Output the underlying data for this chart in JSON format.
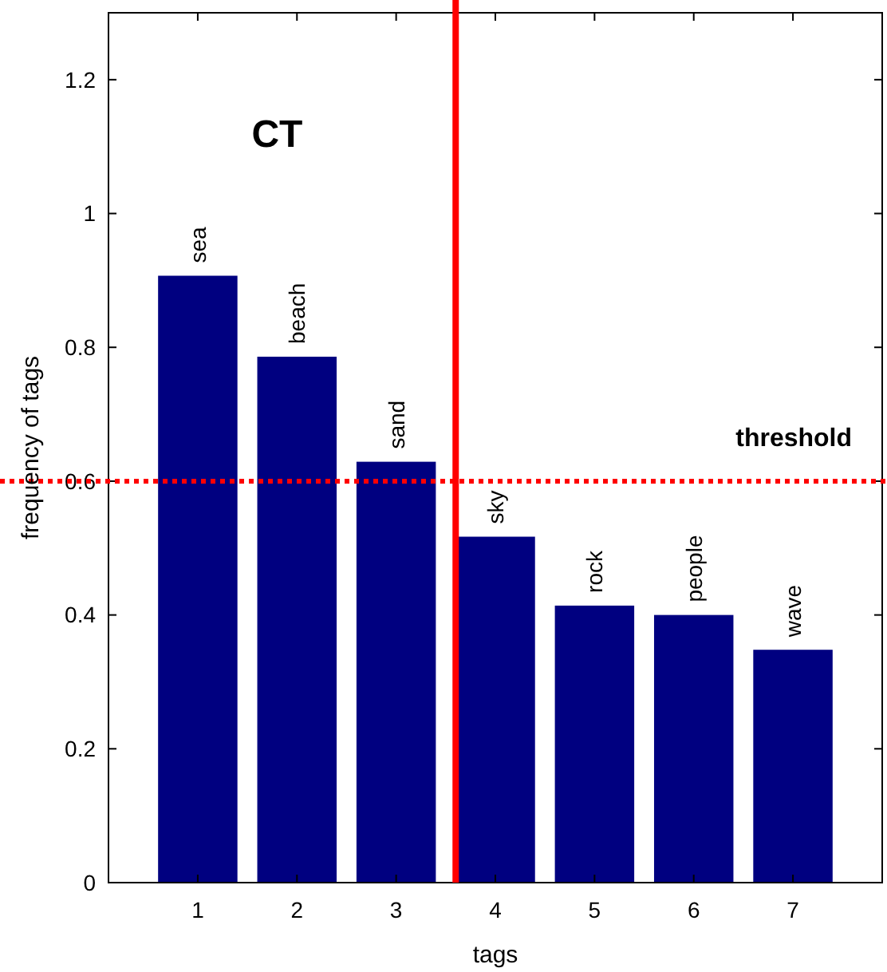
{
  "chart_data": {
    "type": "bar",
    "x": [
      1,
      2,
      3,
      4,
      5,
      6,
      7
    ],
    "values": [
      0.907,
      0.786,
      0.629,
      0.517,
      0.414,
      0.4,
      0.348
    ],
    "color": "#000080",
    "xlim": [
      0.1,
      7.9
    ],
    "xticks": [
      1,
      2,
      3,
      4,
      5,
      6,
      7
    ],
    "ylim": [
      0,
      1.3
    ],
    "yticks": [
      0,
      0.2,
      0.4,
      0.6,
      0.8,
      1,
      1.2
    ],
    "xlabel": "tags",
    "ylabel": "frequency of tags",
    "annotations": [
      "CT",
      {
        "text": "sea",
        "x": 1,
        "y": 0.907
      },
      {
        "text": "beach",
        "x": 2,
        "y": 0.786
      },
      {
        "text": "sand",
        "x": 3,
        "y": 0.629
      },
      {
        "text": "sky",
        "x": 4,
        "y": 0.517
      },
      {
        "text": "rock",
        "x": 5,
        "y": 0.414
      },
      {
        "text": "people",
        "x": 6,
        "y": 0.4
      },
      {
        "text": "wave",
        "x": 7,
        "y": 0.348
      }
    ],
    "ref_lines": [
      {
        "axis": "x",
        "value": 3.6,
        "label": null,
        "color": "#ff0000",
        "line_style": "solid"
      },
      {
        "axis": "y",
        "value": 0.6,
        "label": "threshold",
        "color": "#ff0000",
        "line_style": "dotted"
      }
    ],
    "grid": false
  }
}
